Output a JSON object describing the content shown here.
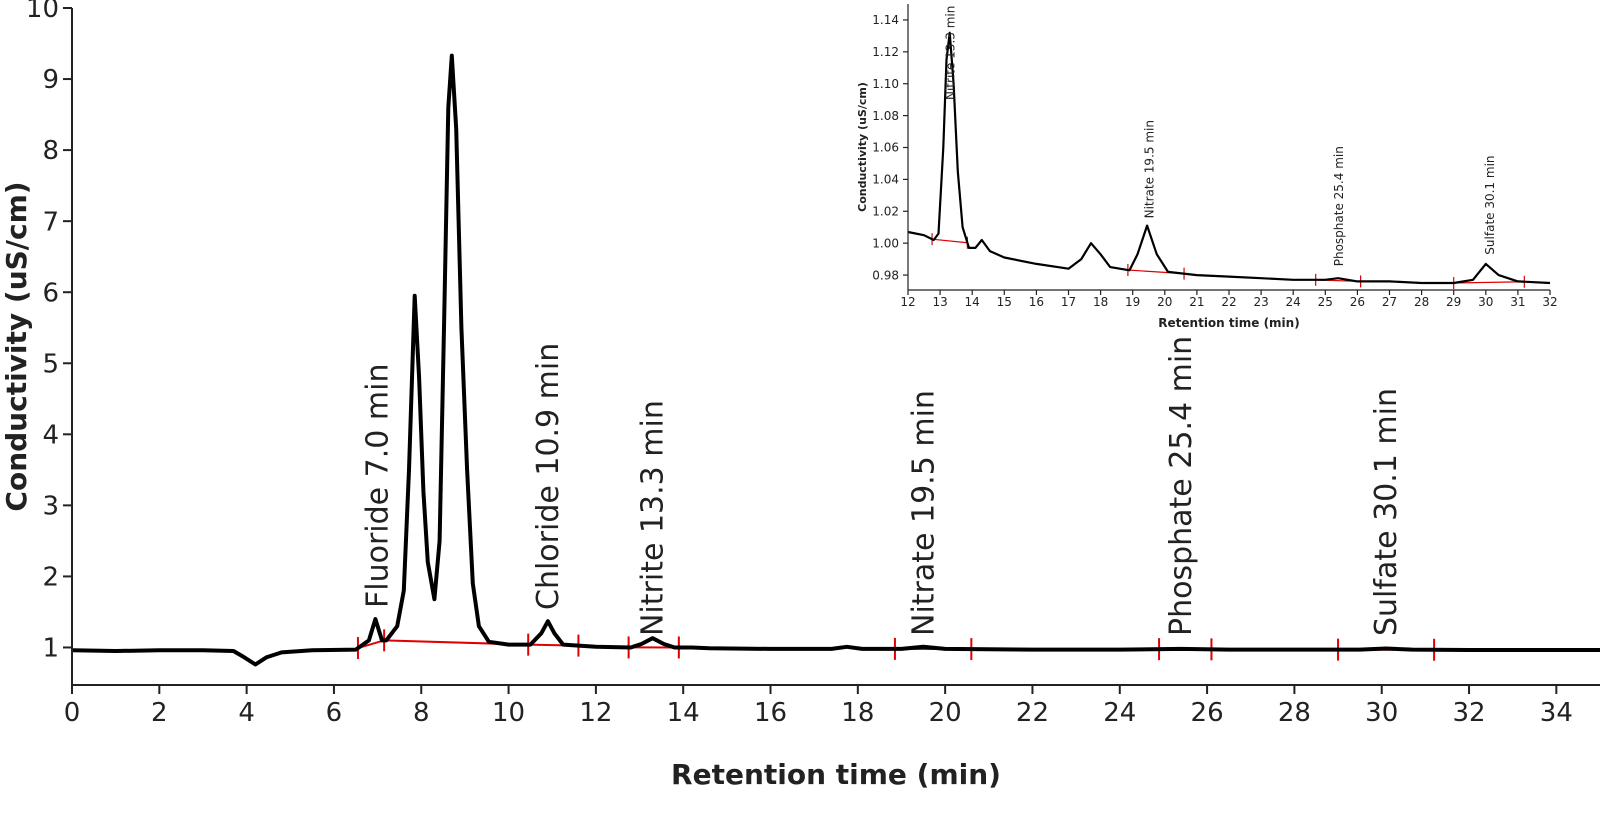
{
  "chart_data": [
    {
      "type": "line",
      "xlabel": "Retention time (min)",
      "ylabel": "Conductivity (uS/cm)",
      "xlim": [
        0,
        35
      ],
      "ylim": [
        0.5,
        10
      ],
      "xticks": [
        0,
        2,
        4,
        6,
        8,
        10,
        12,
        14,
        16,
        18,
        20,
        22,
        24,
        26,
        28,
        30,
        32,
        34
      ],
      "yticks": [
        1,
        2,
        3,
        4,
        5,
        6,
        7,
        8,
        9,
        10
      ],
      "grid": false,
      "trace_color": "#000000",
      "baseline_color": "#e00000",
      "trace": [
        [
          0,
          0.96
        ],
        [
          1,
          0.95
        ],
        [
          2,
          0.96
        ],
        [
          3,
          0.96
        ],
        [
          3.7,
          0.95
        ],
        [
          3.95,
          0.86
        ],
        [
          4.2,
          0.76
        ],
        [
          4.45,
          0.86
        ],
        [
          4.8,
          0.93
        ],
        [
          5.5,
          0.96
        ],
        [
          6.5,
          0.97
        ],
        [
          6.8,
          1.1
        ],
        [
          6.95,
          1.4
        ],
        [
          7.1,
          1.1
        ],
        [
          7.2,
          1.1
        ],
        [
          7.45,
          1.3
        ],
        [
          7.6,
          1.8
        ],
        [
          7.72,
          3.5
        ],
        [
          7.85,
          5.95
        ],
        [
          7.95,
          4.8
        ],
        [
          8.05,
          3.2
        ],
        [
          8.15,
          2.2
        ],
        [
          8.3,
          1.68
        ],
        [
          8.42,
          2.5
        ],
        [
          8.52,
          5.5
        ],
        [
          8.62,
          8.6
        ],
        [
          8.7,
          9.33
        ],
        [
          8.8,
          8.3
        ],
        [
          8.92,
          5.5
        ],
        [
          9.05,
          3.5
        ],
        [
          9.18,
          1.9
        ],
        [
          9.32,
          1.3
        ],
        [
          9.55,
          1.08
        ],
        [
          10.0,
          1.04
        ],
        [
          10.5,
          1.04
        ],
        [
          10.75,
          1.2
        ],
        [
          10.9,
          1.37
        ],
        [
          11.05,
          1.2
        ],
        [
          11.25,
          1.04
        ],
        [
          12.0,
          1.01
        ],
        [
          12.8,
          1.0
        ],
        [
          13.05,
          1.05
        ],
        [
          13.3,
          1.13
        ],
        [
          13.55,
          1.05
        ],
        [
          13.8,
          1.0
        ],
        [
          14.2,
          1.0
        ],
        [
          14.6,
          0.99
        ],
        [
          16.0,
          0.98
        ],
        [
          17.4,
          0.98
        ],
        [
          17.75,
          1.01
        ],
        [
          18.1,
          0.98
        ],
        [
          19.0,
          0.98
        ],
        [
          19.5,
          1.01
        ],
        [
          20.0,
          0.98
        ],
        [
          22,
          0.97
        ],
        [
          24,
          0.97
        ],
        [
          25.4,
          0.98
        ],
        [
          26.5,
          0.97
        ],
        [
          28,
          0.97
        ],
        [
          29.5,
          0.97
        ],
        [
          30.1,
          0.985
        ],
        [
          30.7,
          0.97
        ],
        [
          32,
          0.965
        ],
        [
          34,
          0.965
        ],
        [
          35,
          0.965
        ]
      ],
      "integration_segments": [
        [
          6.55,
          7.15
        ],
        [
          7.15,
          10.45
        ],
        [
          10.45,
          11.6
        ],
        [
          12.75,
          13.9
        ],
        [
          18.85,
          20.6
        ],
        [
          24.9,
          26.1
        ],
        [
          29.0,
          31.2
        ]
      ],
      "integration_ticks": [
        6.55,
        7.15,
        10.45,
        11.6,
        12.75,
        13.9,
        18.85,
        20.6,
        24.9,
        26.1,
        29.0,
        31.2
      ],
      "annotations": [
        {
          "text": "Fluoride 7.0 min",
          "x": 7.0
        },
        {
          "text": "Chloride 10.9 min",
          "x": 10.9
        },
        {
          "text": "Nitrite 13.3 min",
          "x": 13.3
        },
        {
          "text": "Nitrate 19.5 min",
          "x": 19.5
        },
        {
          "text": "Phosphate 25.4 min",
          "x": 25.4
        },
        {
          "text": "Sulfate 30.1 min",
          "x": 30.1
        }
      ]
    },
    {
      "type": "line",
      "xlabel": "Retention time (min)",
      "ylabel": "Conductivity (uS/cm)",
      "xlim": [
        12,
        32
      ],
      "ylim": [
        0.97,
        1.15
      ],
      "xticks": [
        12,
        13,
        14,
        15,
        16,
        17,
        18,
        19,
        20,
        21,
        22,
        23,
        24,
        25,
        26,
        27,
        28,
        29,
        30,
        31,
        32
      ],
      "yticks": [
        0.98,
        1.0,
        1.02,
        1.04,
        1.06,
        1.08,
        1.1,
        1.12,
        1.14
      ],
      "yticks_text": [
        "0.98",
        "1.00",
        "1.02",
        "1.04",
        "1.06",
        "1.08",
        "1.10",
        "1.12",
        "1.14"
      ],
      "grid": false,
      "trace": [
        [
          12.0,
          1.007
        ],
        [
          12.5,
          1.005
        ],
        [
          12.8,
          1.002
        ],
        [
          12.95,
          1.006
        ],
        [
          13.1,
          1.06
        ],
        [
          13.2,
          1.115
        ],
        [
          13.3,
          1.132
        ],
        [
          13.42,
          1.1
        ],
        [
          13.55,
          1.045
        ],
        [
          13.7,
          1.01
        ],
        [
          13.9,
          0.997
        ],
        [
          14.1,
          0.997
        ],
        [
          14.3,
          1.002
        ],
        [
          14.55,
          0.995
        ],
        [
          15.0,
          0.991
        ],
        [
          16.0,
          0.987
        ],
        [
          17.0,
          0.984
        ],
        [
          17.4,
          0.99
        ],
        [
          17.7,
          1.0
        ],
        [
          18.0,
          0.993
        ],
        [
          18.3,
          0.985
        ],
        [
          18.9,
          0.983
        ],
        [
          19.15,
          0.993
        ],
        [
          19.45,
          1.011
        ],
        [
          19.75,
          0.993
        ],
        [
          20.1,
          0.982
        ],
        [
          21,
          0.98
        ],
        [
          22,
          0.979
        ],
        [
          23,
          0.978
        ],
        [
          24,
          0.977
        ],
        [
          25,
          0.977
        ],
        [
          25.4,
          0.978
        ],
        [
          26,
          0.976
        ],
        [
          27,
          0.976
        ],
        [
          28,
          0.975
        ],
        [
          29,
          0.975
        ],
        [
          29.6,
          0.977
        ],
        [
          30.0,
          0.987
        ],
        [
          30.4,
          0.98
        ],
        [
          31,
          0.976
        ],
        [
          32,
          0.975
        ]
      ],
      "integration_segments": [
        [
          12.75,
          13.85
        ],
        [
          18.85,
          20.6
        ],
        [
          24.7,
          26.1
        ],
        [
          29.0,
          31.2
        ]
      ],
      "integration_ticks": [
        12.75,
        13.85,
        18.85,
        20.6,
        24.7,
        26.1,
        29.0,
        31.2
      ],
      "annotations": [
        {
          "text": "Nitrite 13.3 min",
          "x": 13.3
        },
        {
          "text": "Nitrate 19.5 min",
          "x": 19.5
        },
        {
          "text": "Phosphate 25.4 min",
          "x": 25.4
        },
        {
          "text": "Sulfate 30.1 min",
          "x": 30.1
        }
      ]
    }
  ]
}
